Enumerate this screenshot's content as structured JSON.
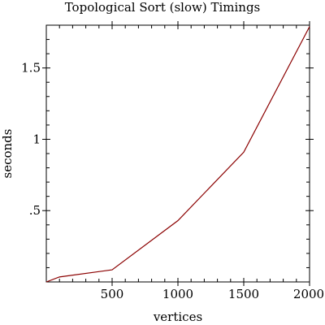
{
  "chart_data": {
    "type": "line",
    "title": "Topological Sort (slow) Timings",
    "xlabel": "vertices",
    "ylabel": "seconds",
    "xlim": [
      0,
      2000
    ],
    "ylim": [
      0,
      1.8
    ],
    "grid": false,
    "x_ticks": [
      {
        "value": 500,
        "label": "500"
      },
      {
        "value": 1000,
        "label": "1000"
      },
      {
        "value": 1500,
        "label": "1500"
      },
      {
        "value": 2000,
        "label": "2000"
      }
    ],
    "y_ticks": [
      {
        "value": 0.5,
        "label": ".5"
      },
      {
        "value": 1,
        "label": "1"
      },
      {
        "value": 1.5,
        "label": "1.5"
      }
    ],
    "series": [
      {
        "color": "#8b0000",
        "x": [
          0,
          100,
          500,
          1000,
          1500,
          2000
        ],
        "y": [
          0.0,
          0.035,
          0.085,
          0.43,
          0.91,
          1.79
        ]
      }
    ]
  }
}
